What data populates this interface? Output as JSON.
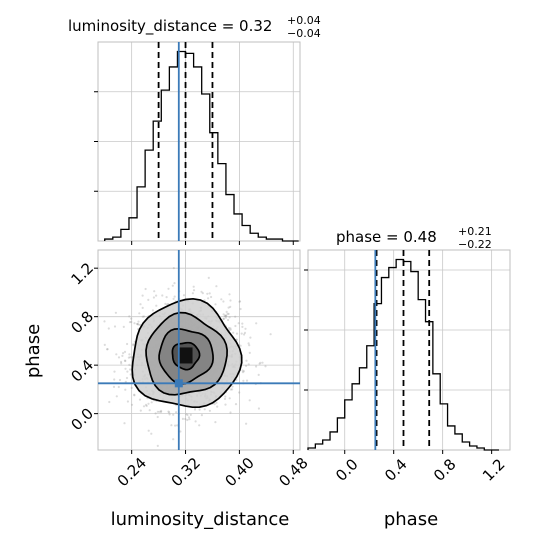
{
  "chart_data": {
    "type": "corner",
    "parameters": [
      "luminosity_distance",
      "phase"
    ],
    "axes": {
      "luminosity_distance": {
        "label": "luminosity_distance",
        "range": [
          0.19,
          0.49
        ],
        "ticks": [
          0.24,
          0.32,
          0.4,
          0.48
        ],
        "tick_labels": [
          "0.24",
          "0.32",
          "0.40",
          "0.48"
        ]
      },
      "phase": {
        "label": "phase",
        "range": [
          -0.3,
          1.35
        ],
        "ticks": [
          0.0,
          0.4,
          0.8,
          1.2
        ],
        "tick_labels": [
          "0.0",
          "0.4",
          "0.8",
          "1.2"
        ]
      }
    },
    "titles": {
      "luminosity_distance": {
        "main": "luminosity_distance = 0.32",
        "plus": "+0.04",
        "minus": "−0.04"
      },
      "phase": {
        "main": "phase = 0.48",
        "plus": "+0.21",
        "minus": "−0.22"
      }
    },
    "truths": {
      "luminosity_distance": 0.31,
      "phase": 0.25
    },
    "quantiles": {
      "luminosity_distance": [
        0.28,
        0.32,
        0.36
      ],
      "phase": [
        0.26,
        0.48,
        0.69
      ]
    },
    "hist_luminosity_distance": {
      "edges": [
        0.2,
        0.212,
        0.224,
        0.236,
        0.248,
        0.26,
        0.272,
        0.284,
        0.296,
        0.308,
        0.32,
        0.332,
        0.344,
        0.356,
        0.368,
        0.38,
        0.392,
        0.404,
        0.416,
        0.428,
        0.44,
        0.452,
        0.464,
        0.476,
        0.488
      ],
      "counts": [
        1,
        2,
        6,
        12,
        28,
        47,
        62,
        78,
        90,
        98,
        97,
        90,
        76,
        56,
        40,
        24,
        14,
        8,
        4,
        2,
        1,
        1,
        0,
        0
      ]
    },
    "hist_phase": {
      "edges": [
        -0.3,
        -0.24,
        -0.18,
        -0.12,
        -0.06,
        0.0,
        0.06,
        0.12,
        0.18,
        0.24,
        0.3,
        0.36,
        0.42,
        0.48,
        0.54,
        0.6,
        0.66,
        0.72,
        0.78,
        0.84,
        0.9,
        0.96,
        1.02,
        1.08,
        1.14,
        1.2,
        1.26
      ],
      "counts": [
        1,
        3,
        5,
        9,
        16,
        25,
        33,
        41,
        52,
        73,
        86,
        91,
        95,
        94,
        89,
        75,
        64,
        38,
        23,
        12,
        8,
        4,
        2,
        1,
        0,
        0
      ]
    },
    "scatter_center": {
      "luminosity_distance": 0.32,
      "phase": 0.48
    },
    "scatter_spread": {
      "luminosity_distance": 0.04,
      "phase": 0.22
    },
    "contour_levels": [
      "0.5",
      "1.0",
      "1.5",
      "2.0"
    ],
    "grid": true
  }
}
